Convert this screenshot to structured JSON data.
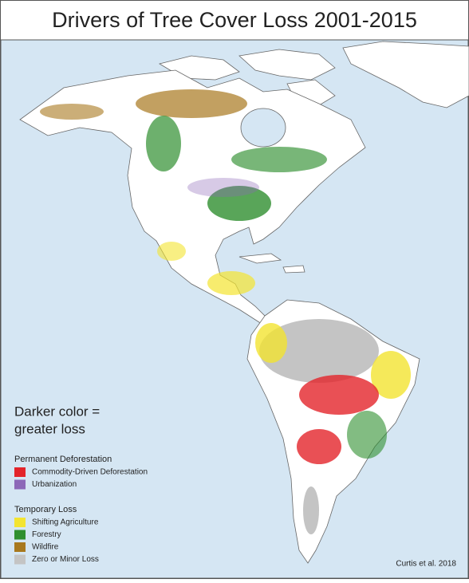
{
  "title": "Drivers of Tree Cover Loss 2001-2015",
  "note": [
    "Darker color =",
    "greater loss"
  ],
  "legend": [
    {
      "heading": "Permanent Deforestation",
      "items": [
        {
          "label": "Commodity-Driven Deforestation",
          "color": "#e3242b"
        },
        {
          "label": "Urbanization",
          "color": "#8c68b8"
        }
      ]
    },
    {
      "heading": "Temporary Loss",
      "items": [
        {
          "label": "Shifting Agriculture",
          "color": "#f3e431"
        },
        {
          "label": "Forestry",
          "color": "#2f8f2f"
        },
        {
          "label": "Wildfire",
          "color": "#a8781e"
        },
        {
          "label": "Zero or Minor Loss",
          "color": "#c4c4c4"
        }
      ]
    }
  ],
  "credit": "Curtis et al. 2018"
}
